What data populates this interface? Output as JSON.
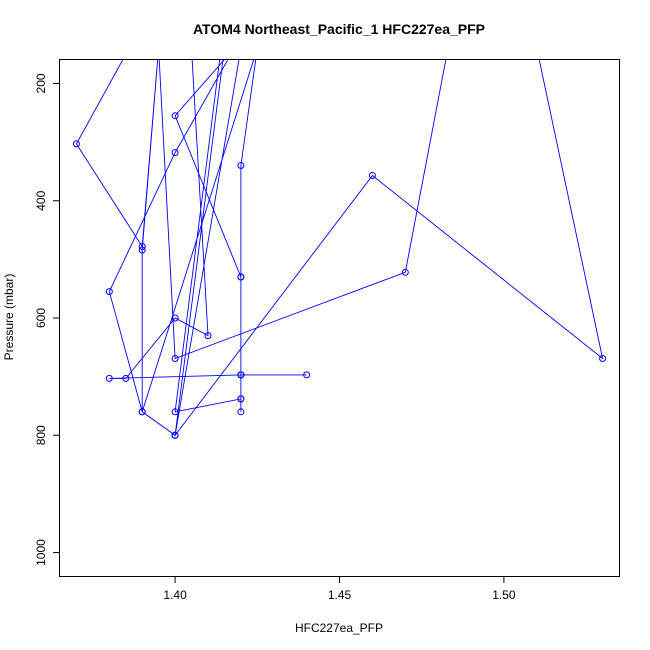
{
  "chart_data": {
    "type": "line",
    "title": "ATOM4 Northeast_Pacific_1 HFC227ea_PFP",
    "xlabel": "HFC227ea_PFP",
    "ylabel": "Pressure (mbar)",
    "xlim": [
      1.365,
      1.535
    ],
    "ylim": [
      1040,
      160
    ],
    "y_reversed": true,
    "x_ticks": [
      1.4,
      1.45,
      1.5
    ],
    "x_tick_labels": [
      "1.40",
      "1.45",
      "1.50"
    ],
    "y_ticks": [
      200,
      400,
      600,
      800,
      1000
    ],
    "y_tick_labels": [
      "200",
      "400",
      "600",
      "800",
      "1000"
    ],
    "grid": false,
    "legend": "none",
    "series_color": "#0000ff",
    "series": [
      {
        "x": [
          1.386,
          1.37,
          1.39,
          1.395,
          1.39,
          1.39,
          1.38,
          1.4,
          1.418,
          1.4,
          1.42,
          1.42,
          1.42,
          1.42,
          1.42,
          1.44,
          1.42,
          1.38,
          1.385,
          1.4,
          1.41,
          1.405,
          1.415,
          1.4,
          1.46,
          1.53,
          1.51,
          1.483,
          1.47,
          1.4,
          1.395,
          1.42,
          1.4,
          1.4,
          1.39,
          1.425,
          1.42,
          1.42,
          1.42,
          1.42,
          1.4,
          1.414
        ],
        "y": [
          140,
          303,
          478,
          140,
          484,
          760,
          555,
          318,
          140,
          255,
          530,
          697,
          738,
          760,
          697,
          697,
          697,
          703,
          703,
          600,
          630,
          140,
          140,
          800,
          357,
          669,
          140,
          140,
          522,
          669,
          140,
          140,
          800,
          800,
          760,
          140,
          340,
          530,
          697,
          738,
          760,
          140
        ]
      }
    ]
  }
}
